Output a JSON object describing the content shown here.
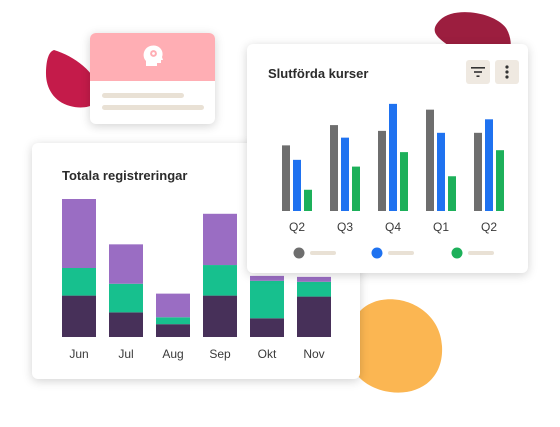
{
  "profile_card": {
    "avatar_icon": "user-gear-icon",
    "accent_color": "#ffaeb4"
  },
  "registrations_card": {
    "title": "Totala registreringar",
    "colors": {
      "bottom": "#473059",
      "middle": "#17c08e",
      "top": "#9a6dc3"
    }
  },
  "courses_card": {
    "title": "Slutförda kurser",
    "filter_icon": "filter-icon",
    "more_icon": "more-vertical-icon",
    "colors": {
      "grey": "#6e6e6e",
      "blue": "#1f72f0",
      "green": "#1db05a"
    }
  },
  "chart_data": [
    {
      "type": "bar",
      "stacked": true,
      "title": "Totala registreringar",
      "categories": [
        "Jun",
        "Jul",
        "Aug",
        "Sep",
        "Okt",
        "Nov"
      ],
      "series": [
        {
          "values": [
            42,
            25,
            13,
            42,
            19,
            41
          ]
        },
        {
          "values": [
            28,
            29,
            7,
            31,
            38,
            15
          ]
        },
        {
          "values": [
            70,
            40,
            24,
            52,
            5,
            5
          ]
        }
      ],
      "ylim": [
        0,
        140
      ],
      "grid": false,
      "legend": "none"
    },
    {
      "type": "bar",
      "title": "Slutförda kurser",
      "categories": [
        "Q2",
        "Q3",
        "Q4",
        "Q1",
        "Q2"
      ],
      "series": [
        {
          "values": [
            68,
            89,
            83,
            105,
            81
          ]
        },
        {
          "values": [
            53,
            76,
            111,
            81,
            95
          ]
        },
        {
          "values": [
            22,
            46,
            61,
            36,
            63
          ]
        }
      ],
      "ylim": [
        0,
        115
      ],
      "grid": false,
      "legend": "bottom"
    }
  ]
}
